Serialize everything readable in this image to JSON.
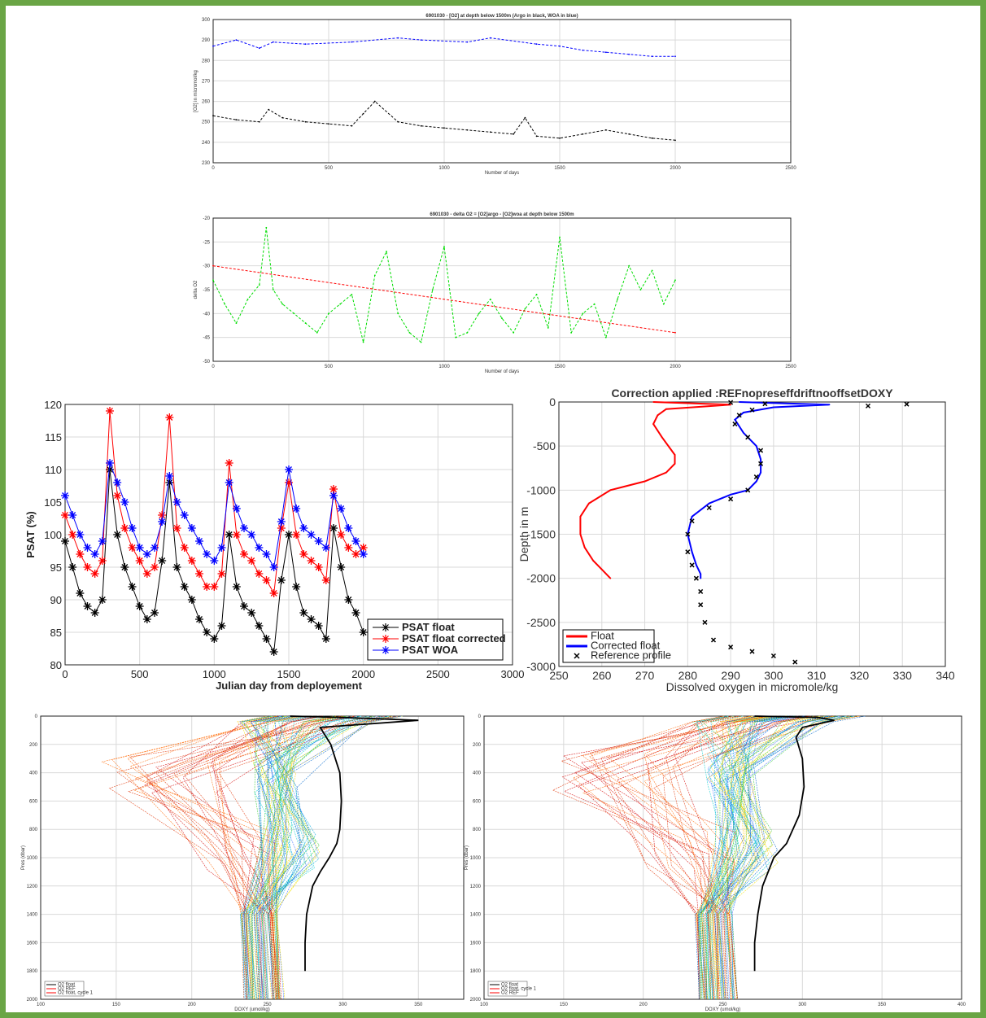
{
  "colors": {
    "frame": "#6aa545",
    "argo": "#000000",
    "woa": "#0000ff",
    "delta": "#00dd00",
    "trend": "#ff0000",
    "float": "#000000",
    "corrected": "#ff0000",
    "woa_series": "#0000ff",
    "corr_profile": "#0000ff",
    "float_profile": "#ff0000"
  },
  "chart_data": [
    {
      "id": "o2-below-1500",
      "type": "line",
      "title": "6901030 - [O2] at depth below 1500m (Argo in black, WOA in blue)",
      "xlabel": "Number of days",
      "ylabel": "[O2] in micromol/kg",
      "xlim": [
        0,
        2500
      ],
      "ylim": [
        230,
        300
      ],
      "xticks": [
        0,
        500,
        1000,
        1500,
        2000,
        2500
      ],
      "yticks": [
        230,
        240,
        250,
        260,
        270,
        280,
        290,
        300
      ],
      "series": [
        {
          "color": "#0000ff",
          "x": [
            0,
            100,
            200,
            260,
            400,
            600,
            800,
            900,
            1100,
            1200,
            1400,
            1500,
            1600,
            1700,
            1800,
            1900,
            2000
          ],
          "values": [
            287,
            290,
            286,
            289,
            288,
            289,
            291,
            290,
            289,
            291,
            288,
            287,
            285,
            284,
            283,
            282,
            282
          ]
        },
        {
          "color": "#000000",
          "x": [
            0,
            100,
            200,
            240,
            300,
            400,
            500,
            600,
            650,
            700,
            800,
            900,
            1000,
            1100,
            1200,
            1300,
            1350,
            1400,
            1500,
            1600,
            1700,
            1800,
            1900,
            2000
          ],
          "values": [
            253,
            251,
            250,
            256,
            252,
            250,
            249,
            248,
            254,
            260,
            250,
            248,
            247,
            246,
            245,
            244,
            252,
            243,
            242,
            244,
            246,
            244,
            242,
            241
          ]
        }
      ]
    },
    {
      "id": "delta-o2",
      "type": "line",
      "title": "6901030 - delta O2 = [O2]argo - [O2]woa at depth below 1500m",
      "xlabel": "Number of days",
      "ylabel": "delta O2",
      "xlim": [
        0,
        2500
      ],
      "ylim": [
        -50,
        -20
      ],
      "xticks": [
        0,
        500,
        1000,
        1500,
        2000,
        2500
      ],
      "yticks": [
        -50,
        -45,
        -40,
        -35,
        -30,
        -25,
        -20
      ],
      "series": [
        {
          "color": "#00dd00",
          "x": [
            0,
            50,
            100,
            150,
            200,
            230,
            260,
            300,
            350,
            400,
            450,
            500,
            550,
            600,
            650,
            700,
            750,
            800,
            850,
            900,
            950,
            1000,
            1050,
            1100,
            1150,
            1200,
            1250,
            1300,
            1350,
            1400,
            1450,
            1500,
            1550,
            1600,
            1650,
            1700,
            1750,
            1800,
            1850,
            1900,
            1950,
            2000
          ],
          "values": [
            -33,
            -38,
            -42,
            -37,
            -34,
            -22,
            -35,
            -38,
            -40,
            -42,
            -44,
            -40,
            -38,
            -36,
            -46,
            -32,
            -27,
            -40,
            -44,
            -46,
            -35,
            -26,
            -45,
            -44,
            -40,
            -37,
            -41,
            -44,
            -39,
            -36,
            -43,
            -24,
            -44,
            -40,
            -38,
            -45,
            -37,
            -30,
            -35,
            -31,
            -38,
            -33
          ]
        },
        {
          "color": "#ff0000",
          "x": [
            0,
            2000
          ],
          "values": [
            -30,
            -44
          ]
        }
      ]
    },
    {
      "id": "psat",
      "type": "line",
      "title": "",
      "xlabel": "Julian day from deployement",
      "ylabel": "PSAT (%)",
      "xlim": [
        0,
        3000
      ],
      "ylim": [
        80,
        120
      ],
      "xticks": [
        0,
        500,
        1000,
        1500,
        2000,
        2500,
        3000
      ],
      "yticks": [
        80,
        85,
        90,
        95,
        100,
        105,
        110,
        115,
        120
      ],
      "legend": "bottom-right",
      "series": [
        {
          "name": "PSAT float",
          "color": "#000000",
          "x": [
            0,
            50,
            100,
            150,
            200,
            250,
            300,
            350,
            400,
            450,
            500,
            550,
            600,
            650,
            700,
            750,
            800,
            850,
            900,
            950,
            1000,
            1050,
            1100,
            1150,
            1200,
            1250,
            1300,
            1350,
            1400,
            1450,
            1500,
            1550,
            1600,
            1650,
            1700,
            1750,
            1800,
            1850,
            1900,
            1950,
            2000
          ],
          "values": [
            99,
            95,
            91,
            89,
            88,
            90,
            110,
            100,
            95,
            92,
            89,
            87,
            88,
            96,
            108,
            95,
            92,
            90,
            87,
            85,
            84,
            86,
            100,
            92,
            89,
            88,
            86,
            84,
            82,
            93,
            100,
            92,
            88,
            87,
            86,
            84,
            101,
            95,
            90,
            88,
            85
          ]
        },
        {
          "name": "PSAT float corrected",
          "color": "#ff0000",
          "x": [
            0,
            50,
            100,
            150,
            200,
            250,
            300,
            350,
            400,
            450,
            500,
            550,
            600,
            650,
            700,
            750,
            800,
            850,
            900,
            950,
            1000,
            1050,
            1100,
            1150,
            1200,
            1250,
            1300,
            1350,
            1400,
            1450,
            1500,
            1550,
            1600,
            1650,
            1700,
            1750,
            1800,
            1850,
            1900,
            1950,
            2000
          ],
          "values": [
            103,
            100,
            97,
            95,
            94,
            96,
            119,
            106,
            101,
            98,
            96,
            94,
            95,
            103,
            118,
            101,
            98,
            96,
            94,
            92,
            92,
            94,
            111,
            100,
            97,
            96,
            94,
            93,
            91,
            101,
            108,
            100,
            97,
            96,
            95,
            93,
            107,
            100,
            98,
            97,
            98
          ]
        },
        {
          "name": "PSAT WOA",
          "color": "#0000ff",
          "x": [
            0,
            50,
            100,
            150,
            200,
            250,
            300,
            350,
            400,
            450,
            500,
            550,
            600,
            650,
            700,
            750,
            800,
            850,
            900,
            950,
            1000,
            1050,
            1100,
            1150,
            1200,
            1250,
            1300,
            1350,
            1400,
            1450,
            1500,
            1550,
            1600,
            1650,
            1700,
            1750,
            1800,
            1850,
            1900,
            1950,
            2000
          ],
          "values": [
            106,
            103,
            100,
            98,
            97,
            99,
            111,
            108,
            105,
            101,
            98,
            97,
            98,
            102,
            109,
            105,
            103,
            101,
            99,
            97,
            96,
            98,
            108,
            104,
            101,
            100,
            98,
            97,
            95,
            102,
            110,
            104,
            101,
            100,
            99,
            98,
            106,
            104,
            101,
            99,
            97
          ]
        }
      ]
    },
    {
      "id": "profile-correction",
      "type": "line",
      "title": "Correction applied :REFnopreseffdriftnooffsetDOXY",
      "xlabel": "Dissolved oxygen in micromole/kg",
      "ylabel": "Depth in m",
      "xlim": [
        250,
        340
      ],
      "ylim": [
        -3000,
        0
      ],
      "xticks": [
        250,
        260,
        270,
        280,
        290,
        300,
        310,
        320,
        330,
        340
      ],
      "yticks": [
        -3000,
        -2500,
        -2000,
        -1500,
        -1000,
        -500,
        0
      ],
      "legend": "bottom-left",
      "series": [
        {
          "name": "Float",
          "color": "#ff0000",
          "x": [
            272,
            290,
            275,
            273,
            272,
            274,
            277,
            277,
            275,
            270,
            262,
            257,
            255,
            255,
            256,
            258,
            260,
            262
          ],
          "values": [
            0,
            -30,
            -80,
            -150,
            -250,
            -400,
            -600,
            -700,
            -800,
            -900,
            -1000,
            -1150,
            -1300,
            -1500,
            -1650,
            -1800,
            -1900,
            -2000
          ]
        },
        {
          "name": "Corrected float",
          "color": "#0000ff",
          "x": [
            292,
            313,
            300,
            293,
            291,
            293,
            296,
            297,
            297,
            296,
            294,
            290,
            285,
            281,
            280,
            281,
            282,
            283,
            283
          ],
          "values": [
            0,
            -30,
            -60,
            -120,
            -200,
            -350,
            -500,
            -650,
            -800,
            -900,
            -1000,
            -1050,
            -1150,
            -1300,
            -1500,
            -1700,
            -1850,
            -1950,
            -2000
          ]
        },
        {
          "name": "Reference profile",
          "color": "#000000",
          "x": [
            290,
            298,
            331,
            322,
            295,
            292,
            291,
            294,
            297,
            297,
            296,
            294,
            290,
            285,
            281,
            280,
            280,
            281,
            282,
            283,
            283,
            284,
            286,
            290,
            295,
            300,
            305
          ],
          "values": [
            -5,
            -20,
            -25,
            -45,
            -90,
            -150,
            -250,
            -400,
            -550,
            -700,
            -850,
            -1000,
            -1100,
            -1200,
            -1350,
            -1500,
            -1700,
            -1850,
            -2000,
            -2150,
            -2300,
            -2500,
            -2700,
            -2780,
            -2830,
            -2880,
            -2950
          ]
        }
      ]
    },
    {
      "id": "profiles-left",
      "type": "line",
      "title": "",
      "xlabel": "DOXY (umol/kg)",
      "ylabel": "Pres (dbar)",
      "xlim": [
        100,
        380
      ],
      "ylim": [
        0,
        2000
      ],
      "xticks": [
        100,
        150,
        200,
        250,
        300,
        350
      ],
      "yticks": [
        0,
        200,
        400,
        600,
        800,
        1000,
        1200,
        1400,
        1600,
        1800,
        2000
      ],
      "legend_labels": [
        "O2 float",
        "O2 REF",
        "O2 float, cycle 1"
      ],
      "series": [
        {
          "color": "#000000",
          "x": [
            265,
            300,
            350,
            285,
            292,
            298,
            299,
            298,
            296,
            291,
            285,
            280,
            276,
            275,
            275
          ],
          "values": [
            0,
            10,
            30,
            80,
            200,
            400,
            600,
            800,
            900,
            1000,
            1100,
            1200,
            1400,
            1600,
            1800
          ]
        }
      ]
    },
    {
      "id": "profiles-right",
      "type": "line",
      "title": "",
      "xlabel": "DOXY (umol/kg)",
      "ylabel": "Pres (dbar)",
      "xlim": [
        100,
        400
      ],
      "ylim": [
        0,
        2000
      ],
      "xticks": [
        100,
        150,
        200,
        250,
        300,
        350,
        400
      ],
      "yticks": [
        0,
        200,
        400,
        600,
        800,
        1000,
        1200,
        1400,
        1600,
        1800,
        2000
      ],
      "legend_labels": [
        "O2 float",
        "O2 float, cycle 1",
        "O2 REF"
      ],
      "series": [
        {
          "color": "#000000",
          "x": [
            270,
            310,
            320,
            300,
            296,
            300,
            301,
            298,
            290,
            282,
            275,
            272,
            270,
            270
          ],
          "values": [
            0,
            10,
            30,
            80,
            150,
            300,
            500,
            700,
            900,
            1000,
            1200,
            1400,
            1600,
            1800
          ]
        }
      ]
    }
  ]
}
